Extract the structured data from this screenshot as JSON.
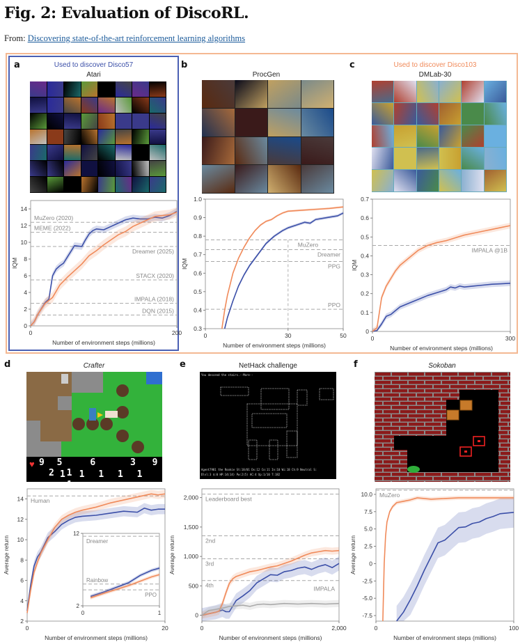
{
  "header": {
    "title": "Fig. 2: Evaluation of DiscoRL.",
    "from_label": "From:",
    "from_link": "Discovering state-of-the-art reinforcement learning algorithms"
  },
  "colors": {
    "disco57": "#3b4fa8",
    "disco103": "#f08a5a",
    "impala_gray": "#aaaaaa",
    "baseline": "#999999",
    "outer_box": "#f4b892",
    "blue_box": "#4a5fb3",
    "link": "#1a5a9a"
  },
  "panels": {
    "a": {
      "letter": "a",
      "used_label": "Used to discover Disco57",
      "env": "Atari"
    },
    "b": {
      "letter": "b",
      "env": "ProcGen"
    },
    "c": {
      "letter": "c",
      "used_label": "Used to discover Disco103",
      "env": "DMLab-30"
    },
    "d": {
      "letter": "d",
      "env": "Crafter",
      "hud_top": [
        "9",
        "5",
        "6",
        "3",
        "9",
        "2",
        "1"
      ],
      "hud_bottom": [
        "1",
        "1",
        "1",
        "1",
        "1",
        "1"
      ]
    },
    "e": {
      "letter": "e",
      "env": "NetHack challenge",
      "term_top": "You descend the stairs.--More--",
      "term_bottom1": "Agent7981 the Rookie       St:18/01 Dx:12 Co:11 In:10 Wi:18 Ch:9 Neutral S:",
      "term_bottom2": "Dlvl:3 $:0 HP:14(14) Pw:2(5) AC:4 Xp:1/10 T:182"
    },
    "f": {
      "letter": "f",
      "env": "Sokoban"
    }
  },
  "chart_data": [
    {
      "id": "a",
      "type": "line",
      "title": "Atari",
      "xlabel": "Number of environment steps (millions)",
      "ylabel": "IQM",
      "xlim": [
        0,
        200
      ],
      "ylim": [
        0,
        15
      ],
      "xticks": [
        0,
        200
      ],
      "yticks": [
        0,
        2,
        4,
        6,
        8,
        10,
        12,
        14
      ],
      "baselines": [
        {
          "name": "MuZero (2020)",
          "value": 12.4,
          "label_side": "left",
          "label_pos": "above"
        },
        {
          "name": "MEME (2022)",
          "value": 11.2,
          "label_side": "left",
          "label_pos": "above"
        },
        {
          "name": "Dreamer (2025)",
          "value": 9.5,
          "label_side": "right",
          "label_pos": "below"
        },
        {
          "name": "STACX (2020)",
          "value": 5.5,
          "label_side": "right",
          "label_pos": "above"
        },
        {
          "name": "IMPALA (2018)",
          "value": 2.7,
          "label_side": "right",
          "label_pos": "above"
        },
        {
          "name": "DQN (2015)",
          "value": 1.3,
          "label_side": "right",
          "label_pos": "above"
        }
      ],
      "series": [
        {
          "name": "Disco57",
          "color": "#3b4fa8",
          "band": 0.4,
          "x": [
            0,
            5,
            10,
            20,
            25,
            30,
            35,
            40,
            45,
            50,
            60,
            70,
            75,
            80,
            85,
            90,
            100,
            110,
            120,
            130,
            140,
            150,
            160,
            170,
            180,
            190,
            200
          ],
          "y": [
            0,
            0.5,
            1.4,
            2.8,
            3.2,
            6.0,
            6.8,
            7.2,
            7.5,
            8.2,
            9.6,
            9.5,
            10.3,
            11.0,
            11.4,
            11.6,
            11.5,
            11.9,
            12.3,
            12.7,
            12.9,
            12.8,
            12.8,
            13.0,
            12.9,
            13.2,
            13.7
          ]
        },
        {
          "name": "Disco103",
          "color": "#f08a5a",
          "band": 0.6,
          "x": [
            0,
            5,
            10,
            20,
            30,
            40,
            50,
            60,
            70,
            80,
            90,
            100,
            110,
            120,
            130,
            140,
            150,
            160,
            170,
            180,
            190,
            200
          ],
          "y": [
            0,
            0.5,
            1.4,
            2.7,
            3.4,
            4.9,
            5.8,
            6.6,
            7.4,
            8.4,
            9.0,
            9.7,
            10.3,
            10.9,
            11.3,
            11.9,
            12.3,
            12.7,
            13.1,
            13.2,
            13.3,
            13.6
          ]
        }
      ]
    },
    {
      "id": "b",
      "type": "line",
      "title": "ProcGen",
      "xlabel": "Number of environment steps (millions)",
      "ylabel": "IQM",
      "xlim": [
        0,
        50
      ],
      "ylim": [
        0.3,
        1.0
      ],
      "xticks": [
        0,
        30,
        50
      ],
      "yticks": [
        0.3,
        0.4,
        0.5,
        0.6,
        0.7,
        0.8,
        0.9,
        1.0
      ],
      "vline": 30,
      "baselines": [
        {
          "name": "MuZero",
          "value": 0.78,
          "label_side": "mid",
          "label_pos": "below"
        },
        {
          "name": "Dreamer",
          "value": 0.727,
          "label_side": "right",
          "label_pos": "below"
        },
        {
          "name": "PPG",
          "value": 0.663,
          "label_side": "right",
          "label_pos": "below"
        },
        {
          "name": "PPO",
          "value": 0.405,
          "label_side": "right",
          "label_pos": "above"
        }
      ],
      "series": [
        {
          "name": "Disco57",
          "color": "#3b4fa8",
          "band": 0.008,
          "x": [
            7,
            8,
            10,
            12,
            14,
            16,
            18,
            20,
            22,
            25,
            28,
            30,
            33,
            36,
            38,
            40,
            44,
            48,
            50
          ],
          "y": [
            0.3,
            0.36,
            0.45,
            0.53,
            0.59,
            0.64,
            0.68,
            0.72,
            0.76,
            0.8,
            0.83,
            0.845,
            0.86,
            0.875,
            0.87,
            0.89,
            0.9,
            0.91,
            0.925
          ]
        },
        {
          "name": "Disco103",
          "color": "#f08a5a",
          "band": 0.006,
          "x": [
            6,
            7,
            8,
            10,
            12,
            14,
            16,
            18,
            20,
            22,
            24,
            26,
            28,
            30,
            35,
            40,
            45,
            50
          ],
          "y": [
            0.3,
            0.4,
            0.48,
            0.6,
            0.68,
            0.74,
            0.79,
            0.83,
            0.86,
            0.88,
            0.89,
            0.91,
            0.925,
            0.935,
            0.94,
            0.945,
            0.95,
            0.958
          ]
        }
      ]
    },
    {
      "id": "c",
      "type": "line",
      "title": "DMLab-30",
      "xlabel": "Number of environment steps (millions)",
      "ylabel": "IQM",
      "xlim": [
        0,
        300
      ],
      "ylim": [
        0,
        0.7
      ],
      "xticks": [
        0,
        300
      ],
      "yticks": [
        0,
        0.1,
        0.2,
        0.3,
        0.4,
        0.5,
        0.6,
        0.7
      ],
      "baselines": [
        {
          "name": "IMPALA @1B",
          "value": 0.455,
          "label_side": "right",
          "label_pos": "below"
        }
      ],
      "series": [
        {
          "name": "Disco57",
          "color": "#3b4fa8",
          "band": 0.015,
          "x": [
            0,
            10,
            20,
            30,
            40,
            50,
            60,
            80,
            100,
            120,
            140,
            160,
            170,
            180,
            190,
            200,
            220,
            240,
            260,
            280,
            300
          ],
          "y": [
            0,
            0.005,
            0.04,
            0.08,
            0.09,
            0.11,
            0.13,
            0.15,
            0.17,
            0.19,
            0.205,
            0.22,
            0.235,
            0.23,
            0.24,
            0.235,
            0.24,
            0.245,
            0.25,
            0.252,
            0.255
          ]
        },
        {
          "name": "Disco103",
          "color": "#f08a5a",
          "band": 0.015,
          "x": [
            0,
            10,
            15,
            20,
            25,
            30,
            40,
            50,
            60,
            80,
            100,
            120,
            140,
            160,
            180,
            200,
            220,
            240,
            260,
            280,
            300
          ],
          "y": [
            0,
            0.02,
            0.1,
            0.18,
            0.21,
            0.24,
            0.28,
            0.32,
            0.35,
            0.39,
            0.43,
            0.455,
            0.47,
            0.48,
            0.495,
            0.51,
            0.52,
            0.53,
            0.54,
            0.55,
            0.56
          ]
        }
      ]
    },
    {
      "id": "d",
      "type": "line",
      "title": "Crafter",
      "xlabel": "Number of environment steps (millions)",
      "ylabel": "Average return",
      "xlim": [
        0,
        20
      ],
      "ylim": [
        2,
        15
      ],
      "xticks": [
        0,
        20
      ],
      "yticks": [
        2,
        4,
        6,
        8,
        10,
        12,
        14
      ],
      "baselines": [
        {
          "name": "Human",
          "value": 14.3,
          "label_side": "left",
          "label_pos": "below"
        }
      ],
      "series": [
        {
          "name": "Disco57",
          "color": "#3b4fa8",
          "band": 0.5,
          "x": [
            0,
            0.5,
            1,
            1.5,
            2,
            3,
            4,
            5,
            6,
            7,
            8,
            10,
            12,
            14,
            16,
            17,
            18,
            19,
            20
          ],
          "y": [
            3,
            5.5,
            7.4,
            8.3,
            8.8,
            10.2,
            10.8,
            11.5,
            11.9,
            12.2,
            12.3,
            12.4,
            12.6,
            12.8,
            12.7,
            13.1,
            12.9,
            13.0,
            13.0
          ]
        },
        {
          "name": "Disco103",
          "color": "#f08a5a",
          "band": 0.4,
          "x": [
            0,
            0.5,
            1,
            1.5,
            2,
            3,
            4,
            5,
            6,
            7,
            8,
            10,
            12,
            14,
            16,
            18,
            19,
            20
          ],
          "y": [
            2.8,
            5,
            6.8,
            7.8,
            8.7,
            10.0,
            11.2,
            12.0,
            12.4,
            12.7,
            12.9,
            13.2,
            13.6,
            13.9,
            14.2,
            14.5,
            14.4,
            14.5
          ]
        }
      ],
      "inset": {
        "xlim": [
          0,
          1
        ],
        "ylim": [
          2,
          12
        ],
        "xticks": [
          0,
          1
        ],
        "yticks": [
          2,
          12
        ],
        "baselines": [
          {
            "name": "Dreamer",
            "value": 11.6,
            "label_pos": "below",
            "label_side": "left"
          },
          {
            "name": "Rainbow",
            "value": 5.0,
            "label_pos": "above",
            "label_side": "left"
          },
          {
            "name": "PPO",
            "value": 4.2,
            "label_pos": "below",
            "label_side": "right"
          }
        ],
        "series": [
          {
            "name": "Disco57",
            "color": "#3b4fa8",
            "x": [
              0.1,
              0.3,
              0.45,
              0.6,
              0.75,
              0.9,
              1.0
            ],
            "y": [
              3.3,
              4.0,
              4.6,
              5.2,
              6.2,
              6.9,
              7.2
            ]
          },
          {
            "name": "Disco103",
            "color": "#f08a5a",
            "x": [
              0.1,
              0.3,
              0.45,
              0.6,
              0.75,
              0.9,
              1.0
            ],
            "y": [
              3.1,
              3.8,
              4.3,
              4.8,
              5.4,
              6.0,
              6.3
            ]
          }
        ]
      }
    },
    {
      "id": "e",
      "type": "line",
      "title": "NetHack challenge",
      "xlabel": "Number of environment steps (millions)",
      "ylabel": "Average return",
      "xlim": [
        0,
        2000
      ],
      "ylim": [
        -100,
        2150
      ],
      "xticks": [
        0,
        2000
      ],
      "yticks": [
        0,
        500,
        1000,
        1500,
        2000
      ],
      "ytick_labels": [
        "0",
        "500",
        "1,000",
        "1,500",
        "2,000"
      ],
      "xtick_labels": [
        "0",
        "2,000"
      ],
      "baselines": [
        {
          "name": "Leaderboard best",
          "value": 2060,
          "label_side": "left",
          "label_pos": "below"
        },
        {
          "name": "2nd",
          "value": 1350,
          "label_side": "left",
          "label_pos": "below"
        },
        {
          "name": "3rd",
          "value": 960,
          "label_side": "left",
          "label_pos": "below"
        },
        {
          "name": "4th",
          "value": 590,
          "label_side": "left",
          "label_pos": "below"
        }
      ],
      "series": [
        {
          "name": "Disco57",
          "color": "#3b4fa8",
          "band": 120,
          "x": [
            0,
            200,
            300,
            350,
            400,
            500,
            600,
            700,
            800,
            900,
            1000,
            1100,
            1200,
            1300,
            1400,
            1500,
            1600,
            1700,
            1800,
            1900,
            2000
          ],
          "y": [
            0,
            50,
            90,
            60,
            60,
            250,
            330,
            420,
            550,
            620,
            690,
            680,
            740,
            760,
            800,
            820,
            780,
            830,
            860,
            810,
            880
          ]
        },
        {
          "name": "Disco103",
          "color": "#f08a5a",
          "band": 60,
          "x": [
            0,
            200,
            250,
            300,
            350,
            400,
            450,
            500,
            600,
            700,
            800,
            900,
            1000,
            1100,
            1200,
            1300,
            1400,
            1500,
            1600,
            1700,
            1800,
            1900,
            2000
          ],
          "y": [
            0,
            50,
            70,
            200,
            380,
            540,
            620,
            660,
            700,
            740,
            760,
            790,
            820,
            840,
            880,
            920,
            970,
            1020,
            1060,
            1080,
            1100,
            1090,
            1100
          ]
        },
        {
          "name": "IMPALA",
          "color": "#aaaaaa",
          "band": 60,
          "label": "IMPALA",
          "x": [
            0,
            100,
            200,
            300,
            400,
            500,
            600,
            700,
            800,
            900,
            1000,
            1200,
            1400,
            1600,
            1800,
            2000
          ],
          "y": [
            0,
            80,
            100,
            120,
            150,
            160,
            170,
            150,
            180,
            190,
            180,
            200,
            190,
            200,
            190,
            200
          ]
        }
      ]
    },
    {
      "id": "f",
      "type": "line",
      "title": "Sokoban",
      "xlabel": "Number of environment steps (millions)",
      "ylabel": "Average return",
      "xlim": [
        0,
        100
      ],
      "ylim": [
        -8.3,
        10.8
      ],
      "xticks": [
        0,
        100
      ],
      "yticks": [
        -7.5,
        -5.0,
        -2.5,
        0,
        2.5,
        5.0,
        7.5,
        10.0
      ],
      "ytick_labels": [
        "-7.5",
        "-5.0",
        "-2.5",
        "0",
        "2.5",
        "5.0",
        "7.5",
        "10.0"
      ],
      "baselines": [
        {
          "name": "MuZero",
          "value": 10.6,
          "label_side": "left",
          "label_pos": "below"
        }
      ],
      "series": [
        {
          "name": "Disco57",
          "color": "#3b4fa8",
          "band": 2.2,
          "x": [
            15,
            20,
            25,
            30,
            35,
            40,
            45,
            50,
            55,
            60,
            65,
            70,
            75,
            80,
            85,
            90,
            95,
            100
          ],
          "y": [
            -8.3,
            -7.0,
            -5.2,
            -3.2,
            -1.0,
            1.0,
            3.0,
            3.4,
            4.3,
            5.2,
            5.3,
            5.8,
            6.0,
            6.5,
            6.8,
            7.2,
            7.3,
            7.4
          ]
        },
        {
          "name": "Disco103",
          "color": "#f08a5a",
          "band": 0.3,
          "x": [
            5,
            6,
            7,
            8,
            10,
            12,
            15,
            20,
            25,
            30,
            40,
            50,
            60,
            70,
            80,
            90,
            100
          ],
          "y": [
            -8.3,
            0,
            4.0,
            6.0,
            7.5,
            8.2,
            8.8,
            9.0,
            9.2,
            9.5,
            9.3,
            9.4,
            9.5,
            9.5,
            9.5,
            9.5,
            9.5
          ]
        }
      ]
    }
  ]
}
